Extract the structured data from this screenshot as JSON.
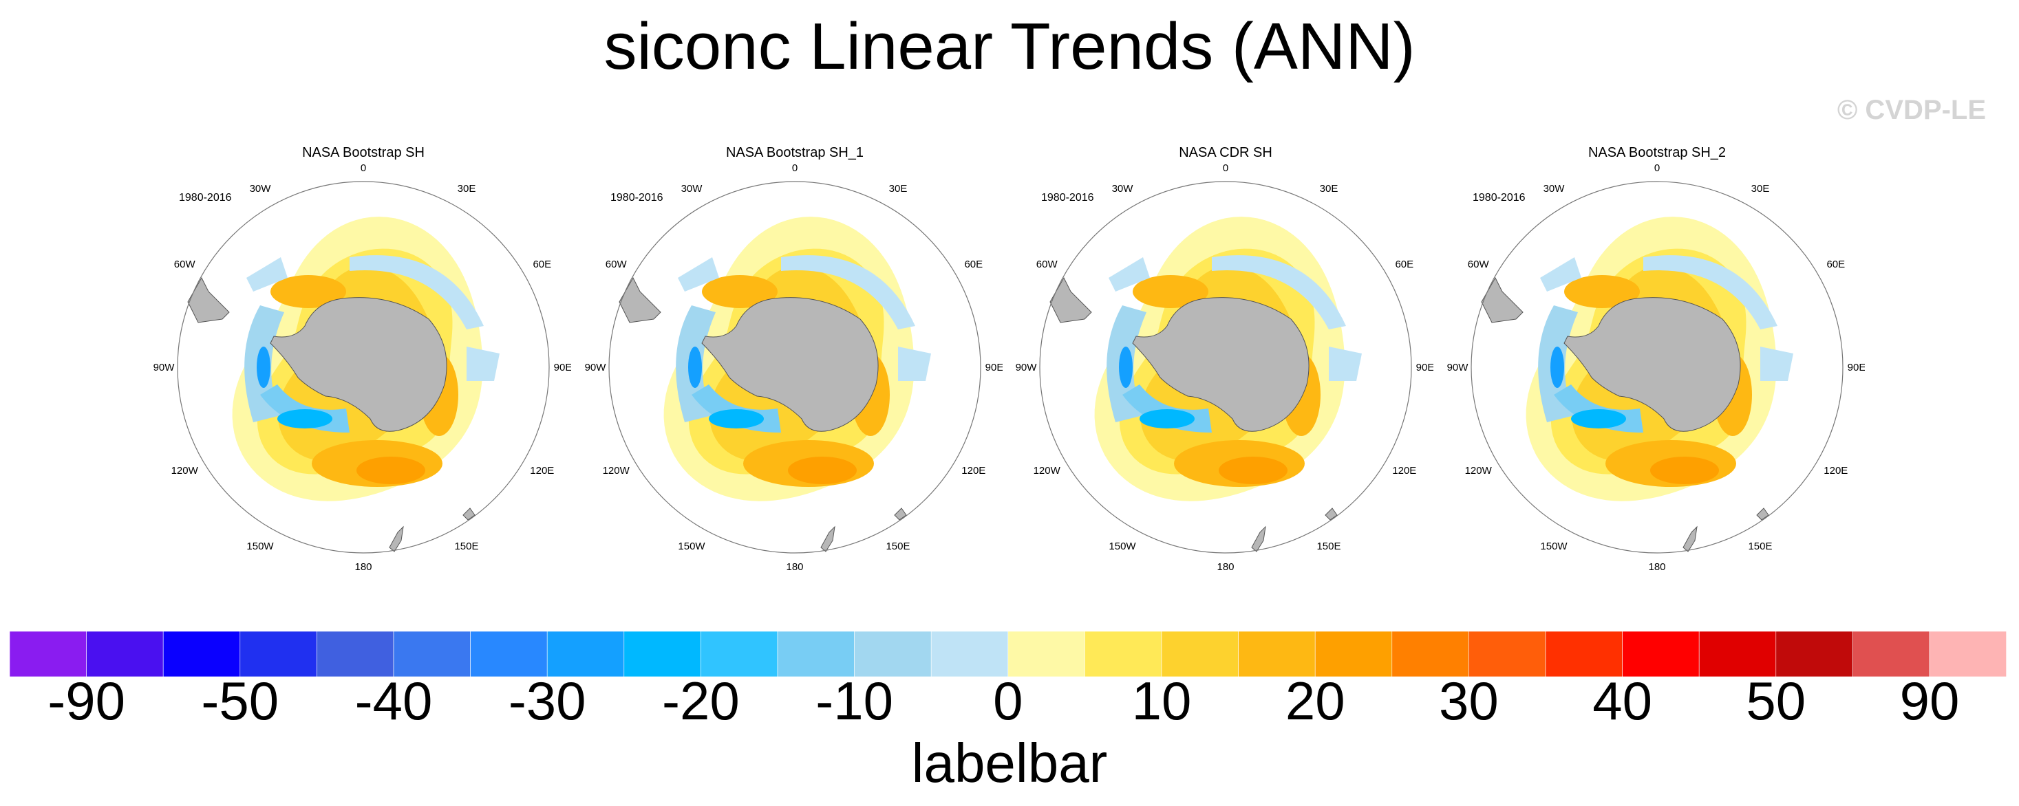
{
  "title": "siconc Linear Trends (ANN)",
  "copyright": "© CVDP-LE",
  "panels": [
    {
      "title": "NASA Bootstrap SH",
      "period": "1980-2016"
    },
    {
      "title": "NASA Bootstrap SH_1",
      "period": "1980-2016"
    },
    {
      "title": "NASA CDR SH",
      "period": "1980-2016"
    },
    {
      "title": "NASA Bootstrap SH_2",
      "period": "1980-2016"
    }
  ],
  "longitude_labels": [
    "0",
    "30E",
    "60E",
    "90E",
    "120E",
    "150E",
    "180",
    "150W",
    "120W",
    "90W",
    "60W",
    "30W"
  ],
  "labelbar": {
    "title": "labelbar",
    "colors": [
      "#8a1cf0",
      "#4a10f0",
      "#0a00ff",
      "#2030f0",
      "#4060e0",
      "#3a78f0",
      "#2888ff",
      "#14a0ff",
      "#00b8ff",
      "#30c4ff",
      "#78cdf4",
      "#a2d7f0",
      "#bfe3f6",
      "#fef9a6",
      "#ffe957",
      "#fdd22e",
      "#feb813",
      "#fea000",
      "#ff8000",
      "#ff5e0a",
      "#ff3000",
      "#ff0000",
      "#e00000",
      "#c00a0a",
      "#e05050",
      "#feb4b4"
    ],
    "tick_labels": [
      "-90",
      "-50",
      "-40",
      "-30",
      "-20",
      "-10",
      "0",
      "10",
      "20",
      "30",
      "40",
      "50",
      "90"
    ]
  },
  "colors": {
    "land": "#b7b7b7",
    "background": "#ffffff"
  }
}
